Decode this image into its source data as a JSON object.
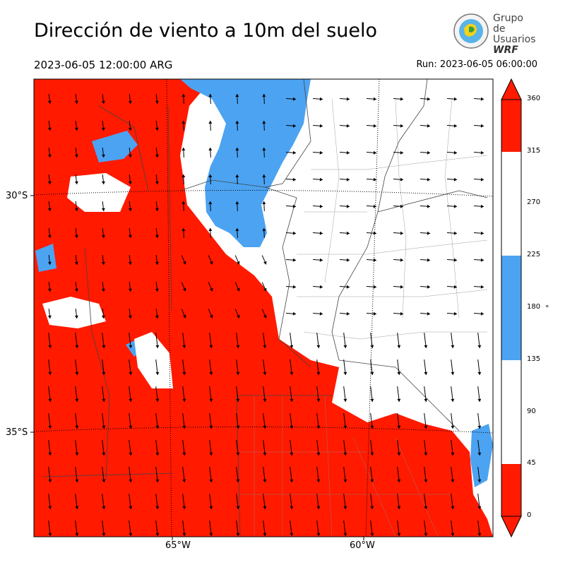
{
  "header": {
    "title": "Dirección de viento a 10m del suelo",
    "valid_time": "2023-06-05 12:00:00 ARG",
    "run_time": "Run: 2023-06-05 06:00:00"
  },
  "logo": {
    "line1": "Grupo de",
    "line2": "Usuarios",
    "line3": "WRF"
  },
  "map": {
    "lat_labels": [
      "30°S",
      "35°S"
    ],
    "lon_labels": [
      "65°W",
      "60°W"
    ]
  },
  "colorbar": {
    "ticks": [
      "0",
      "45",
      "90",
      "135",
      "180",
      "225",
      "270",
      "315",
      "360"
    ],
    "unit": "°",
    "classes": [
      {
        "from": 0,
        "to": 45,
        "color": "#ff1a00"
      },
      {
        "from": 45,
        "to": 135,
        "color": "#ffffff"
      },
      {
        "from": 135,
        "to": 225,
        "color": "#4ca3f2"
      },
      {
        "from": 225,
        "to": 315,
        "color": "#ffffff"
      },
      {
        "from": 315,
        "to": 360,
        "color": "#ff1a00"
      }
    ]
  },
  "colors": {
    "red": "#ff1a00",
    "blue": "#4ca3f2",
    "white": "#ffffff"
  }
}
